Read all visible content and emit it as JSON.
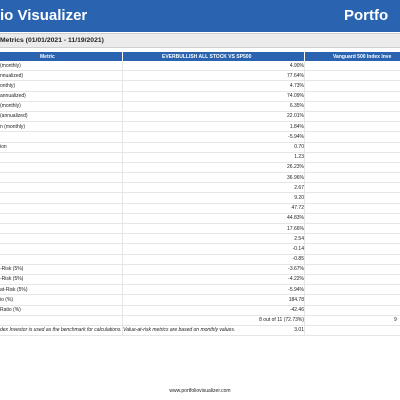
{
  "header": {
    "brand_left": "io Visualizer",
    "brand_right": "Portfo"
  },
  "section_title": "Metrics (01/01/2021 - 11/19/2021)",
  "table": {
    "columns": [
      "Metric",
      "EVERBULLISH ALL STOCK VS SP500",
      "Vanguard 500 Index Inve"
    ],
    "rows": [
      {
        "metric": "(monthly)",
        "value": "4.90%"
      },
      {
        "metric": "nnualized)",
        "value": "77.64%"
      },
      {
        "metric": "onthly)",
        "value": "4.73%"
      },
      {
        "metric": "annualized)",
        "value": "74.09%"
      },
      {
        "metric": "(monthly)",
        "value": "6.35%"
      },
      {
        "metric": "(annualized)",
        "value": "22.01%"
      },
      {
        "metric": "n (monthly)",
        "value": "1.84%"
      },
      {
        "metric": "",
        "value": "-5.94%"
      },
      {
        "metric": "ion",
        "value": "0.70"
      },
      {
        "metric": "",
        "value": "1.23"
      },
      {
        "metric": "",
        "value": "26.23%"
      },
      {
        "metric": "",
        "value": "36.96%"
      },
      {
        "metric": "",
        "value": "2.67"
      },
      {
        "metric": "",
        "value": "9.20"
      },
      {
        "metric": "",
        "value": "47.72"
      },
      {
        "metric": "",
        "value": "44.83%"
      },
      {
        "metric": "",
        "value": "17.66%"
      },
      {
        "metric": "",
        "value": "2.54"
      },
      {
        "metric": "",
        "value": "-0.14"
      },
      {
        "metric": "",
        "value": "-0.85"
      },
      {
        "metric": "-Risk (5%)",
        "value": "-3.67%"
      },
      {
        "metric": "-Risk (5%)",
        "value": "-4.22%"
      },
      {
        "metric": "at-Risk (5%)",
        "value": "-5.94%"
      },
      {
        "metric": "io (%)",
        "value": "184.78"
      },
      {
        "metric": "Ratio (%)",
        "value": "-42.46"
      },
      {
        "metric": "",
        "value": "8 out of 11 (72.73%)",
        "value2": "9"
      },
      {
        "metric": "",
        "value": "3.01"
      }
    ]
  },
  "footnote": "dex Investor is used as the benchmark for calculations. Value-at-risk metrics are based on monthly values.",
  "footer_url": "www.portfoliovisualizer.com"
}
